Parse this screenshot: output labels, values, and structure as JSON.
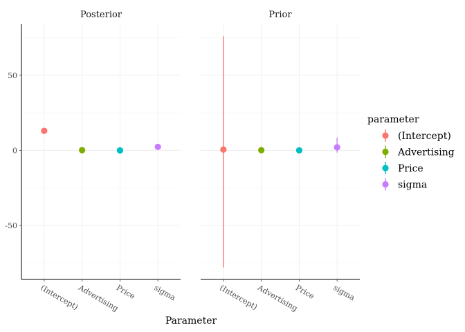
{
  "chart_data": {
    "type": "scatter",
    "geom": "pointrange",
    "facets": [
      {
        "strip_label": "Posterior",
        "points": [
          {
            "parameter": "(Intercept)",
            "estimate": 13.0,
            "lower": 13.0,
            "upper": 13.0
          },
          {
            "parameter": "Advertising",
            "estimate": 0.1,
            "lower": 0.1,
            "upper": 0.1
          },
          {
            "parameter": "Price",
            "estimate": -0.05,
            "lower": -0.05,
            "upper": -0.05
          },
          {
            "parameter": "sigma",
            "estimate": 2.3,
            "lower": 2.3,
            "upper": 2.3
          }
        ]
      },
      {
        "strip_label": "Prior",
        "points": [
          {
            "parameter": "(Intercept)",
            "estimate": 0.5,
            "lower": -78,
            "upper": 76
          },
          {
            "parameter": "Advertising",
            "estimate": 0.1,
            "lower": 0.1,
            "upper": 0.1
          },
          {
            "parameter": "Price",
            "estimate": 0.0,
            "lower": 0.0,
            "upper": 0.0
          },
          {
            "parameter": "sigma",
            "estimate": 2.0,
            "lower": -1.5,
            "upper": 8.5
          }
        ]
      }
    ],
    "categories": [
      "(Intercept)",
      "Advertising",
      "Price",
      "sigma"
    ],
    "xlabel": "Parameter",
    "ylabel": "",
    "y_ticks": [
      -50,
      0,
      50
    ],
    "ylim": [
      -86,
      84
    ],
    "grid": true,
    "legend": {
      "title": "parameter",
      "position": "right",
      "entries": [
        {
          "label": "(Intercept)",
          "color": "#F8766D"
        },
        {
          "label": "Advertising",
          "color": "#7CAE00"
        },
        {
          "label": "Price",
          "color": "#00BFC4"
        },
        {
          "label": "sigma",
          "color": "#C77CFF"
        }
      ]
    }
  }
}
